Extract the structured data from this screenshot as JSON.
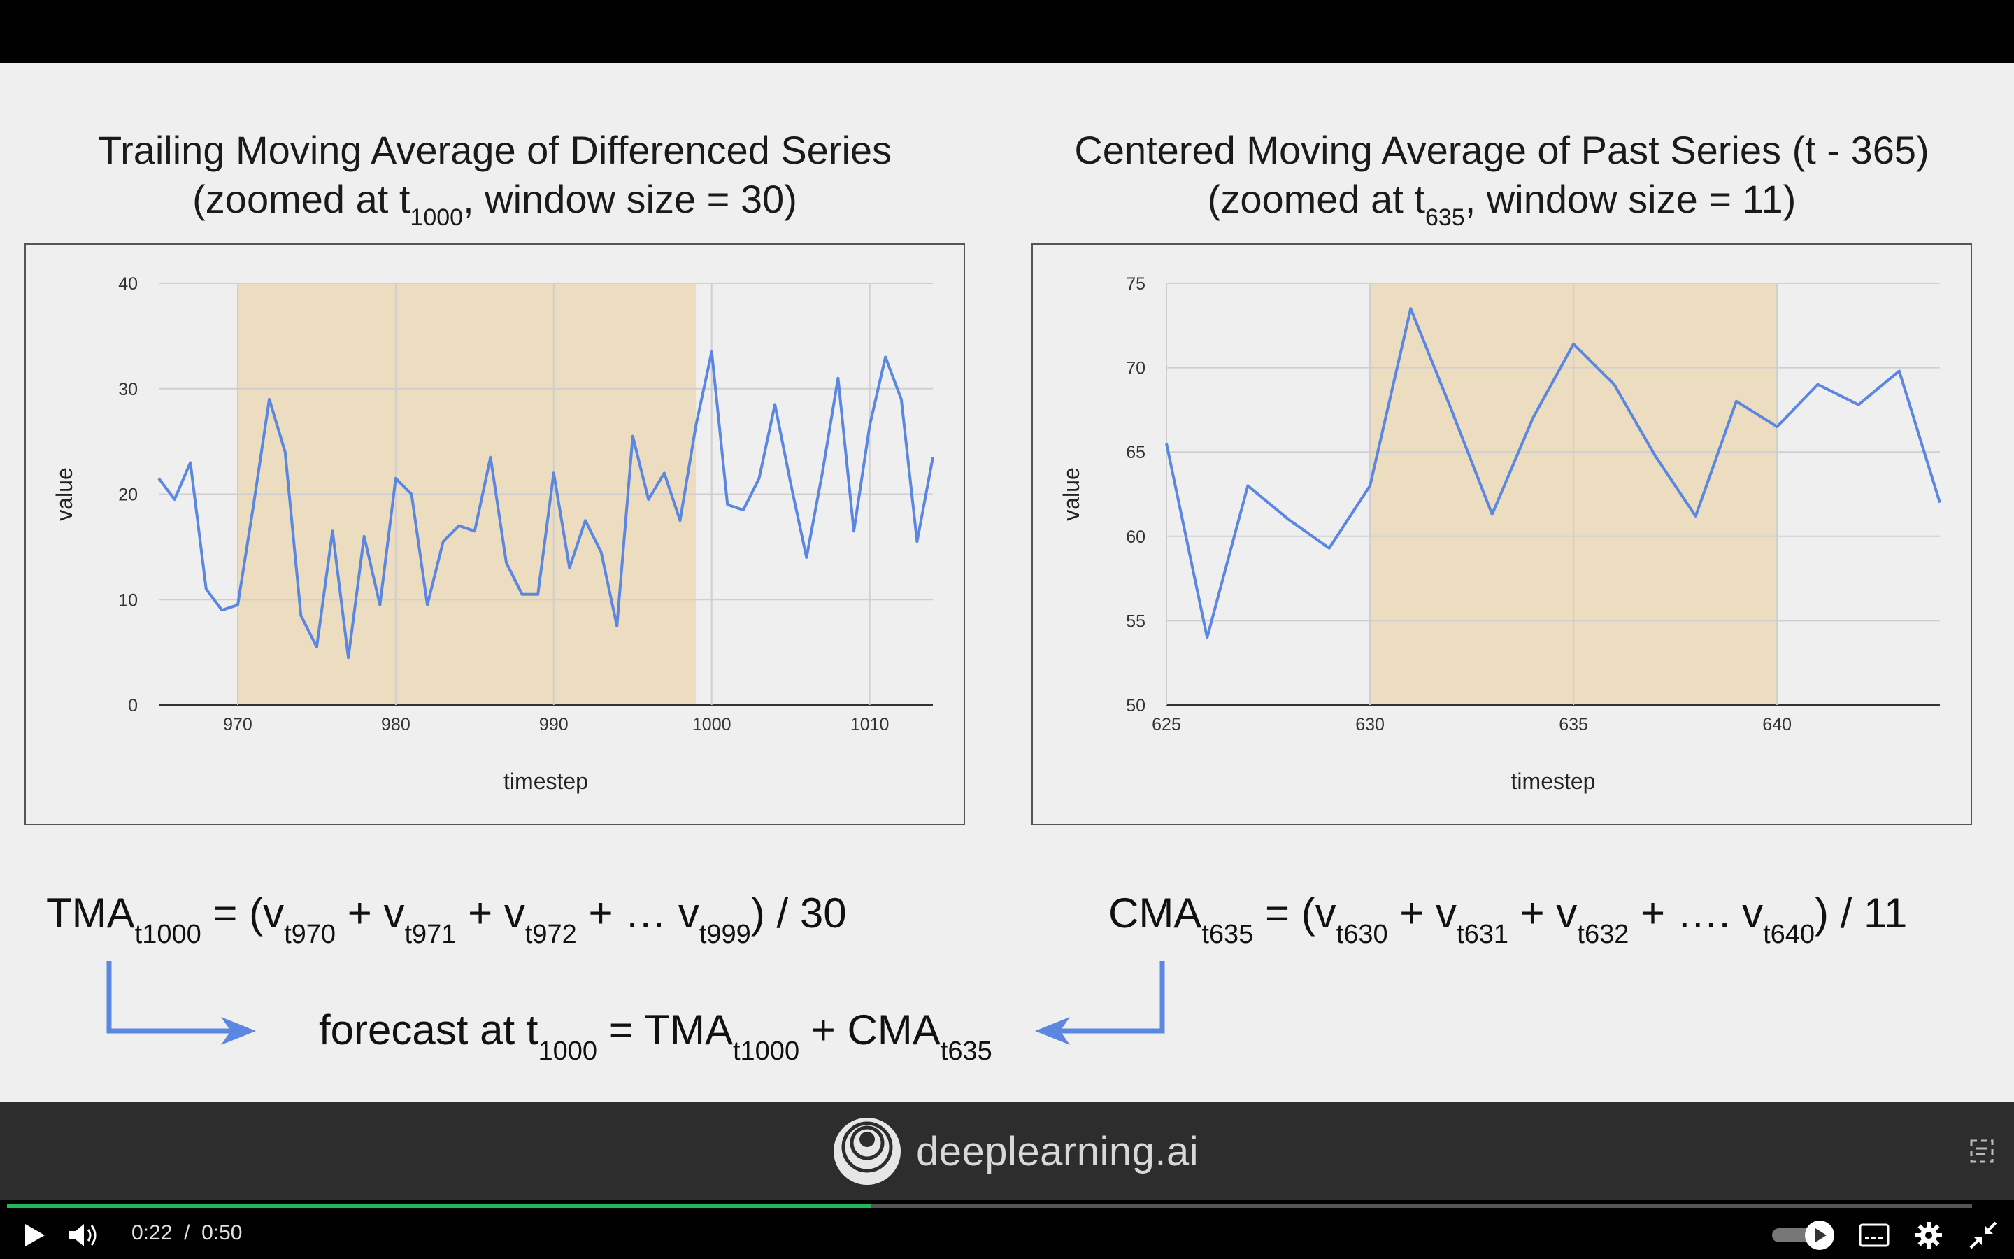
{
  "slide": {
    "left_title": {
      "line1": "Trailing Moving Average of Differenced Series",
      "line2_pre": "(zoomed at t",
      "line2_sub": "1000",
      "line2_post": ", window size = 30)"
    },
    "right_title": {
      "line1": "Centered Moving Average of Past Series (t - 365)",
      "line2_pre": "(zoomed at t",
      "line2_sub": "635",
      "line2_post": ", window size = 11)"
    },
    "formula_tma": {
      "lhs": "TMA",
      "lhs_sub": "t1000",
      "eq": " = (v",
      "s1": "t970",
      "p1": " + v",
      "s2": "t971",
      "p2": " + v",
      "s3": "t972",
      "p3": " + … v",
      "s4": "t999",
      "tail": ") / 30"
    },
    "formula_cma": {
      "lhs": "CMA",
      "lhs_sub": "t635",
      "eq": " = (v",
      "s1": "t630",
      "p1": " + v",
      "s2": "t631",
      "p2": " + v",
      "s3": "t632",
      "p3": " + …. v",
      "s4": "t640",
      "tail": ") / 11"
    },
    "forecast": {
      "pre": "forecast at  t",
      "sub1": "1000",
      "mid": " = TMA",
      "sub2": "t1000",
      "plus": "  + CMA",
      "sub3": "t635"
    }
  },
  "chart_data": [
    {
      "type": "line",
      "title": "",
      "xlabel": "timestep",
      "ylabel": "value",
      "xlim": [
        965,
        1014
      ],
      "ylim": [
        0,
        40
      ],
      "xticks": [
        970,
        980,
        990,
        1000,
        1010
      ],
      "yticks": [
        0,
        10,
        20,
        30,
        40
      ],
      "highlight_range": [
        970,
        999
      ],
      "highlight_color": "#ecdcc0",
      "line_color": "#5b87e0",
      "grid": true,
      "x": [
        965,
        966,
        967,
        968,
        969,
        970,
        971,
        972,
        973,
        974,
        975,
        976,
        977,
        978,
        979,
        980,
        981,
        982,
        983,
        984,
        985,
        986,
        987,
        988,
        989,
        990,
        991,
        992,
        993,
        994,
        995,
        996,
        997,
        998,
        999,
        1000,
        1001,
        1002,
        1003,
        1004,
        1005,
        1006,
        1007,
        1008,
        1009,
        1010,
        1011,
        1012,
        1013,
        1014
      ],
      "y": [
        21.5,
        19.5,
        23,
        11,
        9,
        9.5,
        19,
        29,
        24,
        8.5,
        5.5,
        16.5,
        4.5,
        16,
        9.5,
        21.5,
        20,
        9.5,
        15.5,
        17,
        16.5,
        23.5,
        13.5,
        10.5,
        10.5,
        22,
        13,
        17.5,
        14.5,
        7.5,
        25.5,
        19.5,
        22,
        17.5,
        26.5,
        33.5,
        19,
        18.5,
        21.5,
        28.5,
        21,
        14,
        22,
        31,
        16.5,
        26.5,
        33,
        29,
        15.5,
        23.5
      ]
    },
    {
      "type": "line",
      "title": "",
      "xlabel": "timestep",
      "ylabel": "value",
      "xlim": [
        625,
        644
      ],
      "ylim": [
        50,
        75
      ],
      "xticks": [
        625,
        630,
        635,
        640
      ],
      "yticks": [
        50,
        55,
        60,
        65,
        70,
        75
      ],
      "highlight_range": [
        630,
        640
      ],
      "highlight_color": "#ecdcc0",
      "line_color": "#5b87e0",
      "grid": true,
      "x": [
        625,
        626,
        627,
        628,
        629,
        630,
        631,
        632,
        633,
        634,
        635,
        636,
        637,
        638,
        639,
        640,
        641,
        642,
        643,
        644
      ],
      "y": [
        65.5,
        54,
        63,
        61,
        59.3,
        63,
        73.5,
        67.5,
        61.3,
        67,
        71.4,
        69,
        64.8,
        61.2,
        68,
        66.5,
        69,
        67.8,
        69.8,
        62
      ]
    }
  ],
  "brand": {
    "name": "deeplearning.ai"
  },
  "player": {
    "current": "0:22",
    "separator": "/",
    "duration": "0:50",
    "progress": 0.44,
    "accent": "#1fb85a"
  }
}
